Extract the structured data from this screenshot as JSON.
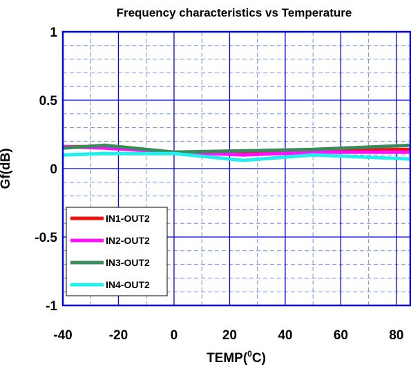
{
  "chart_data": {
    "type": "line",
    "title": "Frequency characteristics vs Temperature",
    "xlabel": "TEMP",
    "xlabel_unit_sup": "0",
    "xlabel_unit_suffix": "C)",
    "ylabel": "Gf(dB)",
    "xlim": [
      -40,
      85
    ],
    "ylim": [
      -1,
      1
    ],
    "xticks": [
      -40,
      -20,
      0,
      20,
      40,
      60,
      80
    ],
    "xtick_labels": [
      "-40",
      "-20",
      "0",
      "20",
      "40",
      "60",
      "80"
    ],
    "yticks": [
      -1,
      -0.5,
      0,
      0.5,
      1
    ],
    "ytick_labels": [
      "-1",
      "-0.5",
      "0",
      "0.5",
      "1"
    ],
    "grid": true,
    "legend_position": "bottom-left",
    "series": [
      {
        "name": "IN1-OUT2",
        "color": "#ee1111",
        "x": [
          -40,
          -25,
          0,
          25,
          50,
          85
        ],
        "y": [
          0.16,
          0.16,
          0.12,
          0.11,
          0.13,
          0.14
        ]
      },
      {
        "name": "IN2-OUT2",
        "color": "#ff11ff",
        "x": [
          -40,
          -25,
          0,
          25,
          50,
          85
        ],
        "y": [
          0.16,
          0.15,
          0.12,
          0.1,
          0.12,
          0.12
        ]
      },
      {
        "name": "IN3-OUT2",
        "color": "#3a8a5c",
        "x": [
          -40,
          -25,
          0,
          25,
          50,
          85
        ],
        "y": [
          0.15,
          0.17,
          0.12,
          0.13,
          0.14,
          0.17
        ]
      },
      {
        "name": "IN4-OUT2",
        "color": "#22eeee",
        "x": [
          -40,
          -25,
          0,
          25,
          50,
          85
        ],
        "y": [
          0.1,
          0.11,
          0.11,
          0.06,
          0.1,
          0.07
        ]
      }
    ]
  }
}
